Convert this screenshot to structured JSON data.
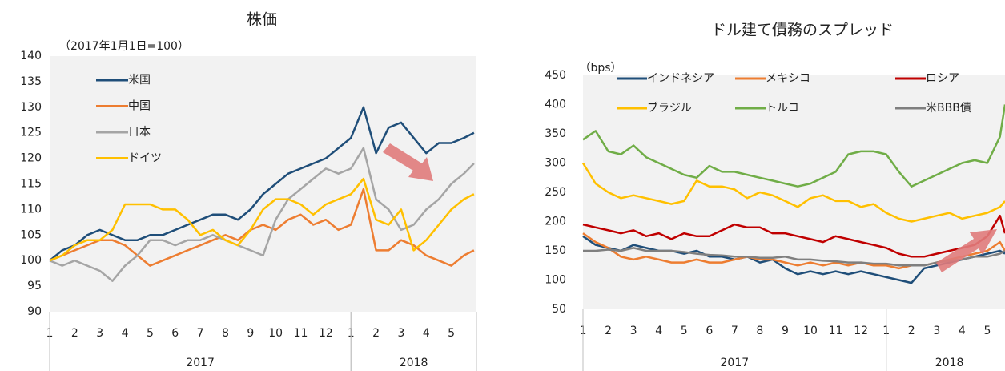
{
  "chart_data": [
    {
      "type": "line",
      "title": "株価",
      "subtitle": "（2017年1月1日=100）",
      "x": [
        0,
        0.5,
        1,
        1.5,
        2,
        2.5,
        3,
        3.5,
        4,
        4.5,
        5,
        5.5,
        6,
        6.5,
        7,
        7.5,
        8,
        8.5,
        9,
        9.5,
        10,
        10.5,
        11,
        11.5,
        12,
        12.5,
        13,
        13.5,
        14,
        14.5,
        15,
        15.5,
        16,
        16.5,
        16.9
      ],
      "xlim": [
        0,
        17
      ],
      "xticks": [
        {
          "value": 0,
          "label": "1"
        },
        {
          "value": 1,
          "label": "2"
        },
        {
          "value": 2,
          "label": "3"
        },
        {
          "value": 3,
          "label": "4"
        },
        {
          "value": 4,
          "label": "5"
        },
        {
          "value": 5,
          "label": "6"
        },
        {
          "value": 6,
          "label": "7"
        },
        {
          "value": 7,
          "label": "8"
        },
        {
          "value": 8,
          "label": "9"
        },
        {
          "value": 9,
          "label": "10"
        },
        {
          "value": 10,
          "label": "11"
        },
        {
          "value": 11,
          "label": "12"
        },
        {
          "value": 12,
          "label": "1"
        },
        {
          "value": 13,
          "label": "2"
        },
        {
          "value": 14,
          "label": "3"
        },
        {
          "value": 15,
          "label": "4"
        },
        {
          "value": 16,
          "label": "5"
        }
      ],
      "x_groups": [
        {
          "label": "2017",
          "range": [
            0,
            12
          ]
        },
        {
          "label": "2018",
          "range": [
            12,
            17
          ]
        }
      ],
      "ylim": [
        90,
        140
      ],
      "yticks": [
        90,
        95,
        100,
        105,
        110,
        115,
        120,
        125,
        130,
        135,
        140
      ],
      "grid": false,
      "series": [
        {
          "name": "米国",
          "color": "#1f4e79",
          "values": [
            100,
            102,
            103,
            105,
            106,
            105,
            104,
            104,
            105,
            105,
            106,
            107,
            108,
            109,
            109,
            108,
            110,
            113,
            115,
            117,
            118,
            119,
            120,
            122,
            124,
            130,
            121,
            126,
            127,
            124,
            121,
            123,
            123,
            124,
            125
          ]
        },
        {
          "name": "中国",
          "color": "#ed7d31",
          "values": [
            100,
            101,
            102,
            103,
            104,
            104,
            103,
            101,
            99,
            100,
            101,
            102,
            103,
            104,
            105,
            104,
            106,
            107,
            106,
            108,
            109,
            107,
            108,
            106,
            107,
            114,
            102,
            102,
            104,
            103,
            101,
            100,
            99,
            101,
            102
          ]
        },
        {
          "name": "日本",
          "color": "#a5a5a5",
          "values": [
            100,
            99,
            100,
            99,
            98,
            96,
            99,
            101,
            104,
            104,
            103,
            104,
            104,
            105,
            104,
            103,
            102,
            101,
            108,
            112,
            114,
            116,
            118,
            117,
            118,
            122,
            112,
            110,
            106,
            107,
            110,
            112,
            115,
            117,
            119
          ]
        },
        {
          "name": "ドイツ",
          "color": "#ffc000",
          "values": [
            100,
            101,
            103,
            104,
            104,
            106,
            111,
            111,
            111,
            110,
            110,
            108,
            105,
            106,
            104,
            103,
            106,
            110,
            112,
            112,
            111,
            109,
            111,
            112,
            113,
            116,
            108,
            107,
            110,
            102,
            104,
            107,
            110,
            112,
            113
          ]
        }
      ]
    },
    {
      "type": "line",
      "title": "ドル建て債務のスプレッド",
      "subtitle": "（bps）",
      "x": [
        0,
        0.5,
        1,
        1.5,
        2,
        2.5,
        3,
        3.5,
        4,
        4.5,
        5,
        5.5,
        6,
        6.5,
        7,
        7.5,
        8,
        8.5,
        9,
        9.5,
        10,
        10.5,
        11,
        11.5,
        12,
        12.5,
        13,
        13.5,
        14,
        14.5,
        15,
        15.5,
        16,
        16.5,
        16.7
      ],
      "xlim": [
        0,
        16.7
      ],
      "xticks": [
        {
          "value": 0,
          "label": "1"
        },
        {
          "value": 1,
          "label": "2"
        },
        {
          "value": 2,
          "label": "3"
        },
        {
          "value": 3,
          "label": "4"
        },
        {
          "value": 4,
          "label": "5"
        },
        {
          "value": 5,
          "label": "6"
        },
        {
          "value": 6,
          "label": "7"
        },
        {
          "value": 7,
          "label": "8"
        },
        {
          "value": 8,
          "label": "9"
        },
        {
          "value": 9,
          "label": "10"
        },
        {
          "value": 10,
          "label": "11"
        },
        {
          "value": 11,
          "label": "12"
        },
        {
          "value": 12,
          "label": "1"
        },
        {
          "value": 13,
          "label": "2"
        },
        {
          "value": 14,
          "label": "3"
        },
        {
          "value": 15,
          "label": "4"
        },
        {
          "value": 16,
          "label": "5"
        }
      ],
      "x_groups": [
        {
          "label": "2017",
          "range": [
            0,
            12
          ]
        },
        {
          "label": "2018",
          "range": [
            12,
            17
          ]
        }
      ],
      "ylim": [
        50,
        450
      ],
      "yticks": [
        50,
        100,
        150,
        200,
        250,
        300,
        350,
        400,
        450
      ],
      "grid": false,
      "series": [
        {
          "name": "インドネシア",
          "color": "#1f4e79",
          "values": [
            175,
            160,
            155,
            150,
            160,
            155,
            150,
            150,
            145,
            150,
            140,
            140,
            135,
            140,
            130,
            135,
            120,
            110,
            115,
            110,
            115,
            110,
            115,
            110,
            105,
            100,
            95,
            120,
            125,
            130,
            135,
            140,
            145,
            150,
            145
          ]
        },
        {
          "name": "メキシコ",
          "color": "#ed7d31",
          "values": [
            180,
            165,
            155,
            140,
            135,
            140,
            135,
            130,
            130,
            135,
            130,
            130,
            135,
            140,
            135,
            135,
            130,
            125,
            130,
            125,
            130,
            125,
            130,
            125,
            125,
            120,
            125,
            125,
            130,
            135,
            140,
            145,
            150,
            165,
            150
          ]
        },
        {
          "name": "ロシア",
          "color": "#c00000",
          "values": [
            195,
            190,
            185,
            180,
            185,
            175,
            180,
            170,
            180,
            175,
            175,
            185,
            195,
            190,
            190,
            180,
            180,
            175,
            170,
            165,
            175,
            170,
            165,
            160,
            155,
            145,
            140,
            140,
            145,
            150,
            155,
            160,
            175,
            210,
            180
          ]
        },
        {
          "name": "ブラジル",
          "color": "#ffc000",
          "values": [
            300,
            265,
            250,
            240,
            245,
            240,
            235,
            230,
            235,
            270,
            260,
            260,
            255,
            240,
            250,
            245,
            235,
            225,
            240,
            245,
            235,
            235,
            225,
            230,
            215,
            205,
            200,
            205,
            210,
            215,
            205,
            210,
            215,
            225,
            235
          ]
        },
        {
          "name": "トルコ",
          "color": "#70ad47",
          "values": [
            340,
            355,
            320,
            315,
            330,
            310,
            300,
            290,
            280,
            275,
            295,
            285,
            285,
            280,
            275,
            270,
            265,
            260,
            265,
            275,
            285,
            315,
            320,
            320,
            315,
            285,
            260,
            270,
            280,
            290,
            300,
            305,
            300,
            345,
            400
          ]
        },
        {
          "name": "米BBB債",
          "color": "#7f7f7f",
          "values": [
            150,
            150,
            152,
            150,
            155,
            150,
            150,
            150,
            148,
            145,
            143,
            142,
            140,
            140,
            138,
            138,
            140,
            135,
            135,
            133,
            132,
            130,
            130,
            128,
            128,
            125,
            125,
            125,
            130,
            133,
            135,
            140,
            140,
            145,
            150
          ]
        }
      ]
    }
  ]
}
